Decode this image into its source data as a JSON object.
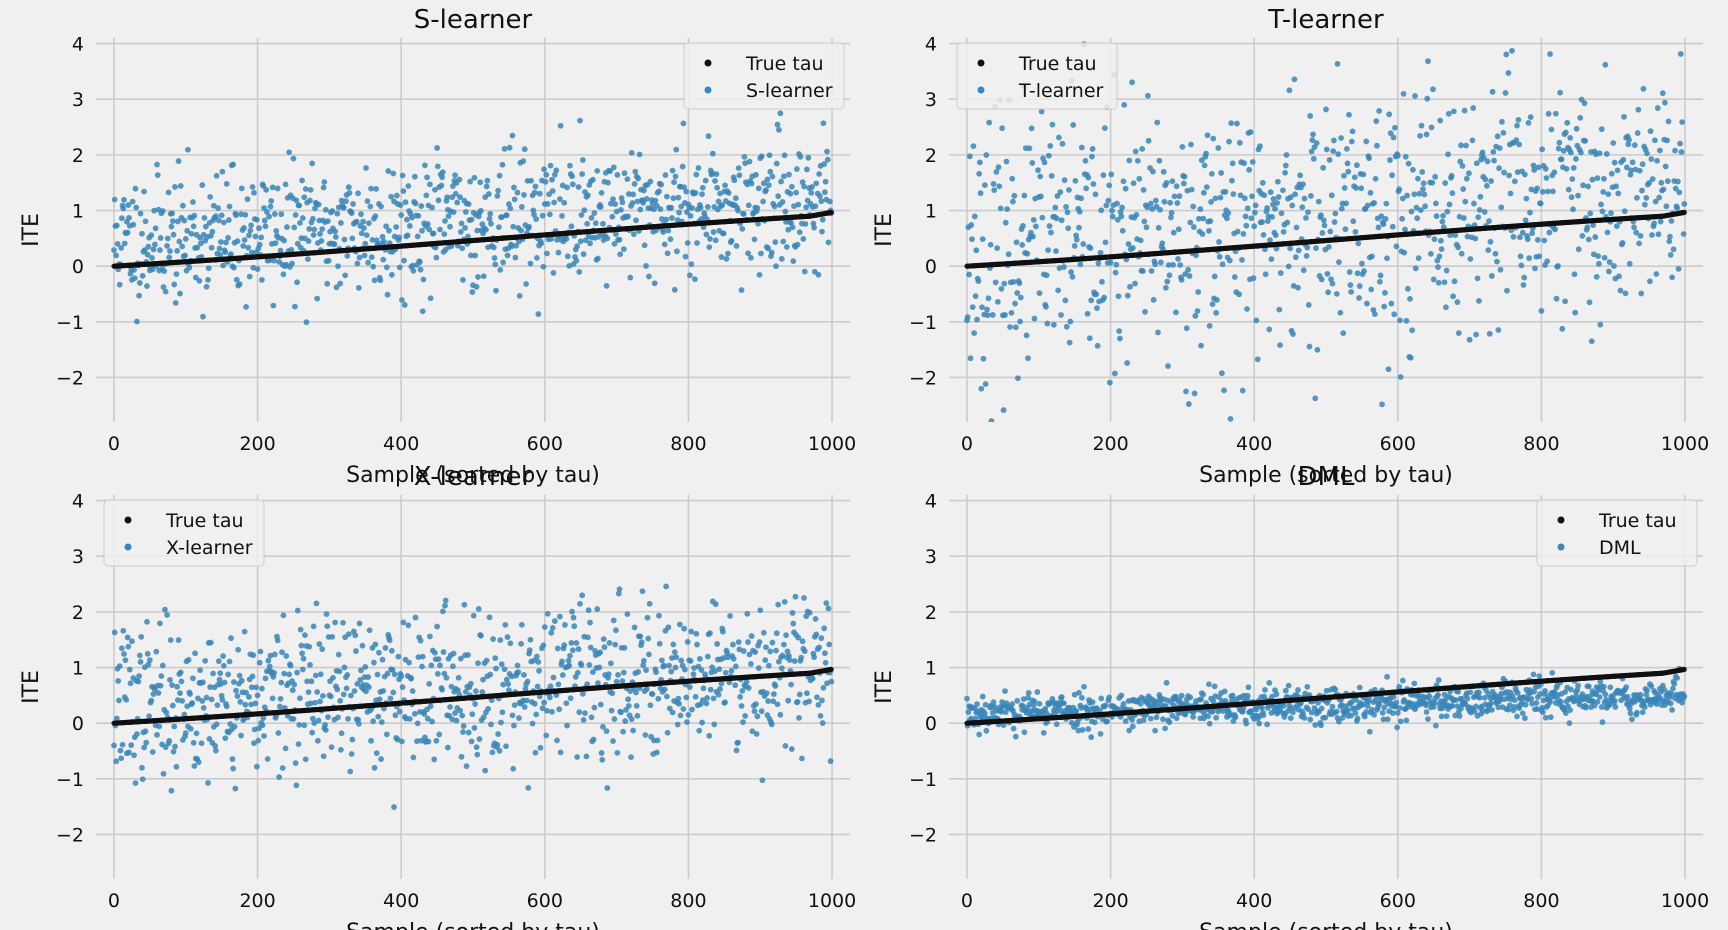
{
  "figure": {
    "background": "#f0f0f0",
    "colors": {
      "true_tau": "#111111",
      "estimate": "#3a86b8",
      "grid": "#cbcbcb"
    }
  },
  "chart_data": [
    {
      "type": "scatter",
      "title": "S-learner",
      "xlabel": "Sample (sorted by tau)",
      "ylabel": "ITE",
      "xlim": [
        -25,
        1025
      ],
      "ylim": [
        -2.8,
        4.1
      ],
      "xticks": [
        0,
        200,
        400,
        600,
        800,
        1000
      ],
      "yticks": [
        -2,
        -1,
        0,
        1,
        2,
        3,
        4
      ],
      "ytick_labels": [
        "−2",
        "−1",
        "0",
        "1",
        "2",
        "3",
        "4"
      ],
      "grid": true,
      "legend": {
        "placement": "top-right",
        "entries": [
          "True tau",
          "S-learner"
        ]
      },
      "n_points": 1000,
      "true_tau": {
        "name": "True tau",
        "start": 0.0,
        "end": 0.98,
        "mid": 0.5
      },
      "estimate": {
        "name": "S-learner",
        "bias_start": 0.45,
        "bias_end": 0.25,
        "spread": 0.58,
        "seed": 11
      }
    },
    {
      "type": "scatter",
      "title": "T-learner",
      "xlabel": "Sample (sorted by tau)",
      "ylabel": "ITE",
      "xlim": [
        -25,
        1025
      ],
      "ylim": [
        -2.8,
        4.1
      ],
      "xticks": [
        0,
        200,
        400,
        600,
        800,
        1000
      ],
      "yticks": [
        -2,
        -1,
        0,
        1,
        2,
        3,
        4
      ],
      "ytick_labels": [
        "−2",
        "−1",
        "0",
        "1",
        "2",
        "3",
        "4"
      ],
      "grid": true,
      "legend": {
        "placement": "top-left",
        "entries": [
          "True tau",
          "T-learner"
        ]
      },
      "n_points": 1000,
      "true_tau": {
        "name": "True tau",
        "start": 0.0,
        "end": 0.98,
        "mid": 0.5
      },
      "estimate": {
        "name": "T-learner",
        "bias_start": 0.3,
        "bias_end": 0.4,
        "spread": 1.15,
        "seed": 23
      }
    },
    {
      "type": "scatter",
      "title": "X-learner",
      "xlabel": "Sample (sorted by tau)",
      "ylabel": "ITE",
      "xlim": [
        -25,
        1025
      ],
      "ylim": [
        -2.8,
        4.1
      ],
      "xticks": [
        0,
        200,
        400,
        600,
        800,
        1000
      ],
      "yticks": [
        -2,
        -1,
        0,
        1,
        2,
        3,
        4
      ],
      "ytick_labels": [
        "−2",
        "−1",
        "0",
        "1",
        "2",
        "3",
        "4"
      ],
      "grid": true,
      "legend": {
        "placement": "top-left",
        "entries": [
          "True tau",
          "X-learner"
        ]
      },
      "n_points": 1000,
      "true_tau": {
        "name": "True tau",
        "start": 0.0,
        "end": 0.98,
        "mid": 0.5
      },
      "estimate": {
        "name": "X-learner",
        "bias_start": 0.35,
        "bias_end": 0.1,
        "spread": 0.68,
        "seed": 37
      }
    },
    {
      "type": "scatter",
      "title": "DML",
      "xlabel": "Sample (sorted by tau)",
      "ylabel": "ITE",
      "xlim": [
        -25,
        1025
      ],
      "ylim": [
        -2.8,
        4.1
      ],
      "xticks": [
        0,
        200,
        400,
        600,
        800,
        1000
      ],
      "yticks": [
        -2,
        -1,
        0,
        1,
        2,
        3,
        4
      ],
      "ytick_labels": [
        "−2",
        "−1",
        "0",
        "1",
        "2",
        "3",
        "4"
      ],
      "grid": true,
      "legend": {
        "placement": "top-right",
        "entries": [
          "True tau",
          "DML"
        ]
      },
      "n_points": 1000,
      "true_tau": {
        "name": "True tau",
        "start": 0.0,
        "end": 0.98,
        "mid": 0.5
      },
      "estimate": {
        "name": "DML",
        "bias_start": 0.2,
        "bias_end": -0.45,
        "spread": 0.17,
        "seed": 53
      }
    }
  ]
}
